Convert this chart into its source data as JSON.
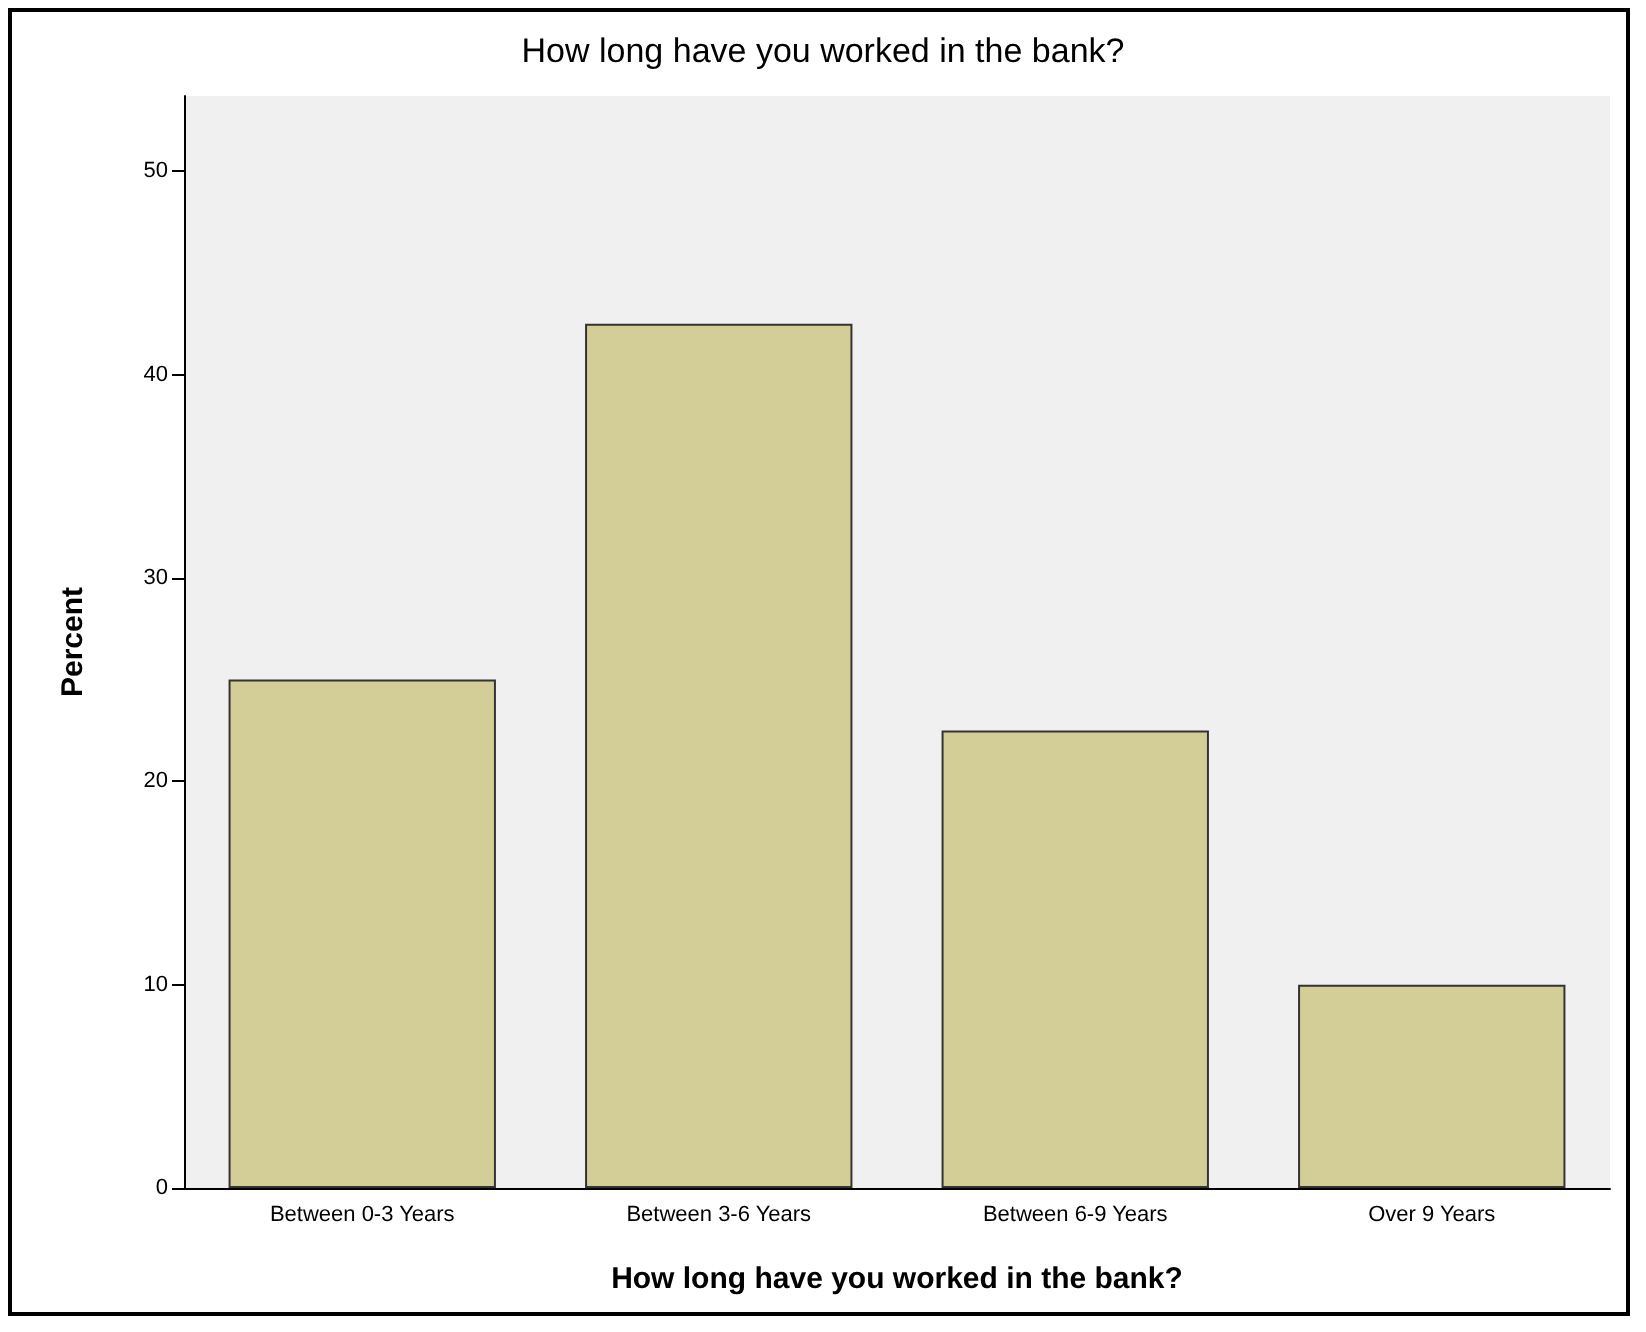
{
  "chart_data": {
    "type": "bar",
    "title": "How long have you worked in the bank?",
    "xlabel": "How long have you worked in the bank?",
    "ylabel": "Percent",
    "categories": [
      "Between 0-3 Years",
      "Between 3-6 Years",
      "Between 6-9 Years",
      "Over 9 Years"
    ],
    "values": [
      25,
      42.5,
      22.5,
      10
    ],
    "color": "#d3ce97",
    "ylim": [
      0,
      53.7
    ],
    "yticks": [
      0,
      10,
      20,
      30,
      40,
      50
    ],
    "grid": false
  }
}
